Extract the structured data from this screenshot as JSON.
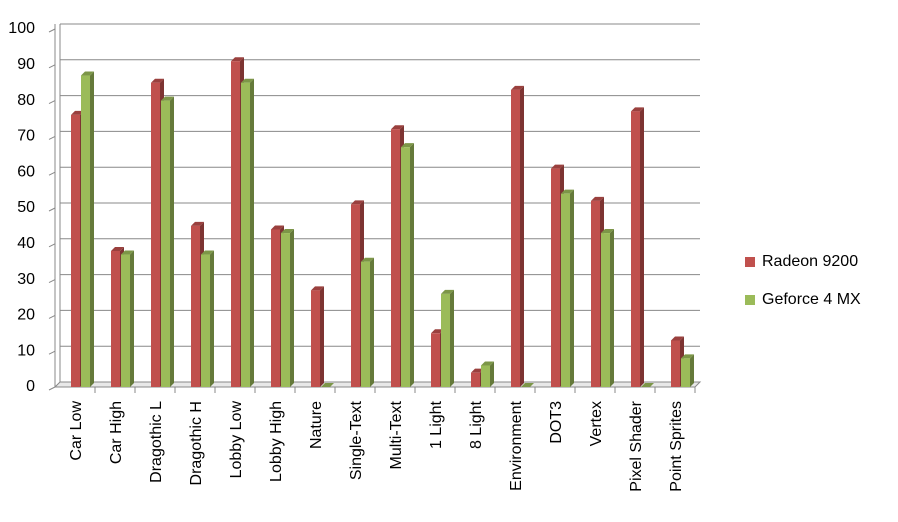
{
  "chart_data": {
    "type": "bar",
    "categories": [
      "Car Low",
      "Car High",
      "Dragothic L",
      "Dragothic H",
      "Lobby Low",
      "Lobby High",
      "Nature",
      "Single-Text",
      "Multi-Text",
      "1 Light",
      "8 Light",
      "Environment",
      "DOT3",
      "Vertex",
      "Pixel Shader",
      "Point Sprites"
    ],
    "series": [
      {
        "name": "Radeon 9200",
        "color": "#c0504d",
        "values": [
          76,
          38,
          85,
          45,
          91,
          44,
          27,
          51,
          72,
          15,
          4,
          83,
          61,
          52,
          77,
          13
        ]
      },
      {
        "name": "Geforce 4 MX",
        "color": "#9bbb59",
        "values": [
          87,
          37,
          80,
          37,
          85,
          43,
          0,
          35,
          67,
          26,
          6,
          0,
          54,
          43,
          0,
          8
        ]
      }
    ],
    "ylim": [
      0,
      100
    ],
    "yticks": [
      0,
      10,
      20,
      30,
      40,
      50,
      60,
      70,
      80,
      90,
      100
    ],
    "grid": true,
    "legend": "right"
  }
}
